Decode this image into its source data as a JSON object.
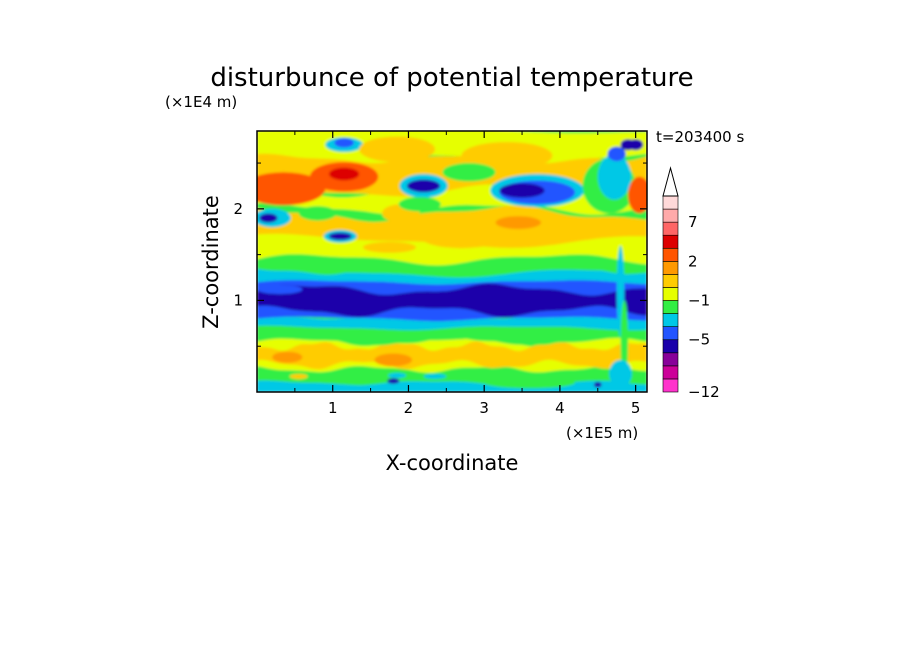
{
  "chart_data": {
    "type": "heatmap",
    "title": "disturbunce of potential temperature",
    "xlabel": "X-coordinate",
    "ylabel": "Z-coordinate",
    "x_unit": "(×1E5 m)",
    "y_unit": "(×1E4 m)",
    "time_label": "t=203400 s",
    "xlim": [
      0,
      5.15
    ],
    "ylim": [
      0,
      2.85
    ],
    "x_ticks": [
      "1",
      "2",
      "3",
      "4",
      "5"
    ],
    "y_ticks": [
      "1",
      "2"
    ],
    "colorbar_labels": [
      "7",
      "2",
      "−1",
      "−5",
      "−12"
    ],
    "color_levels": [
      "#ff33cc",
      "#cc0099",
      "#880099",
      "#1a00aa",
      "#2255ff",
      "#00c8e6",
      "#33ee44",
      "#e6ff00",
      "#ffcc00",
      "#ff9900",
      "#ff5500",
      "#dd0000",
      "#ff6666",
      "#ffaaaa",
      "#ffd9d9"
    ],
    "field_levels": [
      -12,
      -10,
      -8,
      -6,
      -5,
      -4,
      -3,
      -1,
      0,
      1,
      2,
      4,
      6,
      7,
      8,
      9
    ],
    "bands": [
      {
        "z0": 0.0,
        "z1": 0.1,
        "level": "cyan"
      },
      {
        "z0": 0.1,
        "z1": 0.25,
        "level": "green"
      },
      {
        "z0": 0.25,
        "z1": 0.55,
        "level": "yellow-orange"
      },
      {
        "z0": 0.55,
        "z1": 0.7,
        "level": "green"
      },
      {
        "z0": 0.7,
        "z1": 0.8,
        "level": "cyan"
      },
      {
        "z0": 0.8,
        "z1": 1.2,
        "level": "dark-blue"
      },
      {
        "z0": 1.2,
        "z1": 1.3,
        "level": "cyan"
      },
      {
        "z0": 1.3,
        "z1": 1.55,
        "level": "yellow"
      },
      {
        "z0": 1.55,
        "z1": 2.0,
        "level": "orange"
      },
      {
        "z0": 2.0,
        "z1": 2.6,
        "level": "mixed"
      },
      {
        "z0": 2.6,
        "z1": 2.85,
        "level": "green-cyan"
      }
    ]
  }
}
